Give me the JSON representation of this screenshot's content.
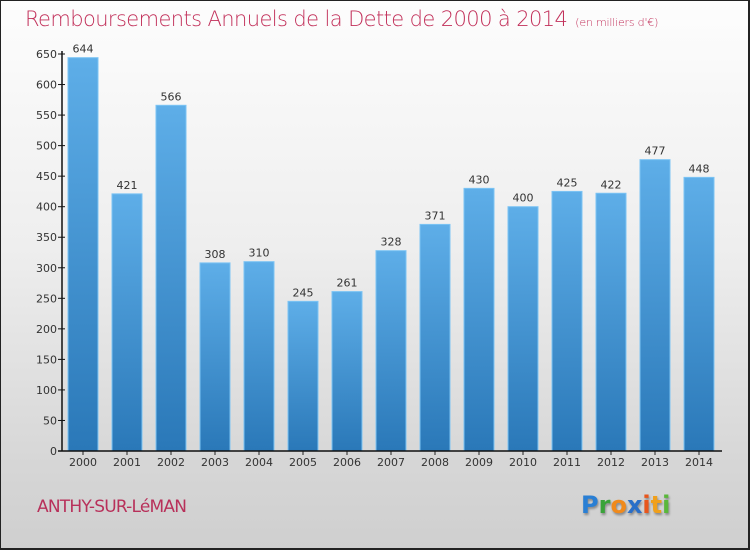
{
  "chart_data": {
    "type": "bar",
    "title": "Remboursements Annuels de la Dette de 2000 à 2014",
    "subtitle": "(en milliers d'€)",
    "xlabel": "",
    "ylabel": "",
    "categories": [
      "2000",
      "2001",
      "2002",
      "2003",
      "2004",
      "2005",
      "2006",
      "2007",
      "2008",
      "2009",
      "2010",
      "2011",
      "2012",
      "2013",
      "2014"
    ],
    "values": [
      644,
      421,
      566,
      308,
      310,
      245,
      261,
      328,
      371,
      430,
      400,
      425,
      422,
      477,
      448
    ],
    "ylim": [
      0,
      650
    ],
    "yticks": [
      0,
      50,
      100,
      150,
      200,
      250,
      300,
      350,
      400,
      450,
      500,
      550,
      600,
      650
    ],
    "grid": false,
    "legend": "none",
    "data_labels": true
  },
  "footer": {
    "city": "ANTHY-SUR-LéMAN",
    "logo_letters": [
      {
        "ch": "P",
        "color": "#2a7fd4"
      },
      {
        "ch": "r",
        "color": "#3aa33a"
      },
      {
        "ch": "o",
        "color": "#f08a1c"
      },
      {
        "ch": "x",
        "color": "#2a6fc8"
      },
      {
        "ch": "i",
        "color": "#e8561c"
      },
      {
        "ch": "t",
        "color": "#f0a01c"
      },
      {
        "ch": "i",
        "color": "#5ab83a"
      }
    ]
  },
  "colors": {
    "title": "#c2305a",
    "bar_top": "#5eaee8",
    "bar_bottom": "#2a78b8",
    "bar_edge": "#7cc4f4"
  }
}
